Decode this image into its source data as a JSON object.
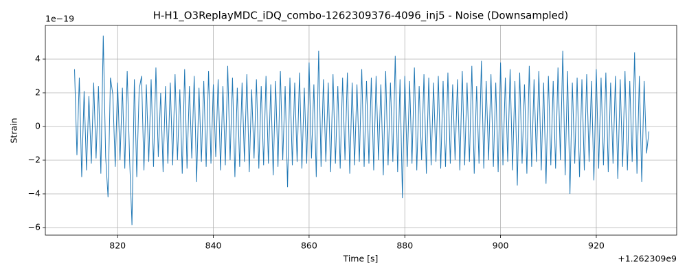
{
  "chart_data": {
    "type": "line",
    "title": "H-H1_O3ReplayMDC_iDQ_combo-1262309376-4096_inj5 - Noise (Downsampled)",
    "x_label": "Time [s]",
    "y_label": "Strain",
    "x_offset_label": "+1.262309e9",
    "y_multiplier_label": "1e−19",
    "grid": true,
    "xlim": [
      804.9,
      936.8
    ],
    "ylim": [
      -6.45,
      6.0
    ],
    "xticks": [
      820,
      840,
      860,
      880,
      900,
      920
    ],
    "yticks": [
      {
        "value": -6,
        "label": "−6"
      },
      {
        "value": -4,
        "label": "−4"
      },
      {
        "value": -2,
        "label": "−2"
      },
      0,
      2,
      4
    ],
    "x": [
      811,
      811.5,
      812,
      812.5,
      813,
      813.5,
      814,
      814.5,
      815,
      815.5,
      816,
      816.5,
      817,
      817.5,
      818,
      818.5,
      819,
      819.5,
      820,
      820.5,
      821,
      821.5,
      822,
      822.5,
      823,
      823.5,
      824,
      824.5,
      825,
      825.5,
      826,
      826.5,
      827,
      827.5,
      828,
      828.5,
      829,
      829.5,
      830,
      830.5,
      831,
      831.5,
      832,
      832.5,
      833,
      833.5,
      834,
      834.5,
      835,
      835.5,
      836,
      836.5,
      837,
      837.5,
      838,
      838.5,
      839,
      839.5,
      840,
      840.5,
      841,
      841.5,
      842,
      842.5,
      843,
      843.5,
      844,
      844.5,
      845,
      845.5,
      846,
      846.5,
      847,
      847.5,
      848,
      848.5,
      849,
      849.5,
      850,
      850.5,
      851,
      851.5,
      852,
      852.5,
      853,
      853.5,
      854,
      854.5,
      855,
      855.5,
      856,
      856.5,
      857,
      857.5,
      858,
      858.5,
      859,
      859.5,
      860,
      860.5,
      861,
      861.5,
      862,
      862.5,
      863,
      863.5,
      864,
      864.5,
      865,
      865.5,
      866,
      866.5,
      867,
      867.5,
      868,
      868.5,
      869,
      869.5,
      870,
      870.5,
      871,
      871.5,
      872,
      872.5,
      873,
      873.5,
      874,
      874.5,
      875,
      875.5,
      876,
      876.5,
      877,
      877.5,
      878,
      878.5,
      879,
      879.5,
      880,
      880.5,
      881,
      881.5,
      882,
      882.5,
      883,
      883.5,
      884,
      884.5,
      885,
      885.5,
      886,
      886.5,
      887,
      887.5,
      888,
      888.5,
      889,
      889.5,
      890,
      890.5,
      891,
      891.5,
      892,
      892.5,
      893,
      893.5,
      894,
      894.5,
      895,
      895.5,
      896,
      896.5,
      897,
      897.5,
      898,
      898.5,
      899,
      899.5,
      900,
      900.5,
      901,
      901.5,
      902,
      902.5,
      903,
      903.5,
      904,
      904.5,
      905,
      905.5,
      906,
      906.5,
      907,
      907.5,
      908,
      908.5,
      909,
      909.5,
      910,
      910.5,
      911,
      911.5,
      912,
      912.5,
      913,
      913.5,
      914,
      914.5,
      915,
      915.5,
      916,
      916.5,
      917,
      917.5,
      918,
      918.5,
      919,
      919.5,
      920,
      920.5,
      921,
      921.5,
      922,
      922.5,
      923,
      923.5,
      924,
      924.5,
      925,
      925.5,
      926,
      926.5,
      927,
      927.5,
      928,
      928.5,
      929,
      929.5,
      930,
      930.5,
      931
    ],
    "series": [
      {
        "name": "Strain",
        "color": "#1f77b4",
        "values": [
          3.4,
          -1.7,
          2.9,
          -3.0,
          2.1,
          -2.6,
          1.8,
          -2.2,
          2.6,
          -1.9,
          2.4,
          -2.8,
          5.4,
          -1.8,
          -4.2,
          2.9,
          1.9,
          -2.4,
          2.6,
          -2.0,
          2.3,
          -2.5,
          3.3,
          -1.9,
          -5.85,
          2.8,
          -3.0,
          2.2,
          3.0,
          -2.6,
          2.5,
          -2.1,
          2.8,
          -2.4,
          3.5,
          -1.8,
          2.0,
          -2.7,
          2.4,
          -2.2,
          2.6,
          -2.3,
          3.1,
          -2.0,
          2.2,
          -2.8,
          3.4,
          -2.5,
          2.4,
          -1.9,
          3.0,
          -3.3,
          2.3,
          -2.1,
          2.7,
          -2.4,
          3.3,
          -2.2,
          2.5,
          -1.8,
          2.8,
          -2.6,
          2.4,
          -2.3,
          3.6,
          -2.0,
          2.9,
          -3.0,
          2.3,
          -2.4,
          2.6,
          -2.1,
          3.1,
          -2.7,
          2.2,
          -1.9,
          2.8,
          -2.5,
          2.4,
          -2.3,
          3.0,
          -2.2,
          2.5,
          -2.9,
          2.7,
          -2.4,
          3.3,
          -2.0,
          2.4,
          -3.6,
          2.9,
          -2.3,
          2.6,
          -2.1,
          3.2,
          -2.5,
          2.3,
          -2.2,
          3.8,
          -1.9,
          2.5,
          -3.0,
          4.5,
          -2.4,
          2.8,
          -2.1,
          2.6,
          -2.7,
          3.1,
          -2.2,
          2.4,
          -2.5,
          2.9,
          -2.0,
          3.2,
          -2.8,
          2.6,
          -2.3,
          2.5,
          -2.1,
          3.4,
          -2.4,
          2.7,
          -2.2,
          2.9,
          -2.6,
          3.0,
          -2.0,
          2.5,
          -2.9,
          3.3,
          -2.3,
          2.6,
          -2.1,
          4.2,
          -2.7,
          2.8,
          -4.25,
          3.0,
          -2.4,
          2.7,
          -2.2,
          3.5,
          -2.6,
          2.4,
          -2.0,
          3.1,
          -2.8,
          2.9,
          -2.3,
          2.6,
          -2.1,
          3.0,
          -2.5,
          2.7,
          -2.4,
          3.2,
          -2.2,
          2.5,
          -2.0,
          2.8,
          -2.6,
          3.3,
          -2.3,
          2.6,
          -2.1,
          3.6,
          -2.8,
          2.4,
          -2.2,
          3.9,
          -2.5,
          2.7,
          -2.0,
          3.1,
          -2.4,
          2.6,
          -2.7,
          3.8,
          -2.3,
          2.9,
          -2.1,
          3.4,
          -2.6,
          2.7,
          -3.5,
          3.2,
          -2.2,
          2.5,
          -2.8,
          3.6,
          -2.4,
          2.8,
          -2.1,
          3.3,
          -2.6,
          2.6,
          -3.4,
          3.0,
          -2.3,
          2.7,
          -2.5,
          3.5,
          -2.0,
          4.5,
          -2.9,
          3.3,
          -4.0,
          2.6,
          -2.2,
          2.9,
          -3.0,
          2.8,
          -2.6,
          3.1,
          -2.1,
          2.7,
          -3.2,
          3.4,
          -2.5,
          2.9,
          -2.3,
          3.2,
          -2.7,
          2.6,
          -2.2,
          3.0,
          -3.1,
          2.8,
          -2.4,
          3.3,
          -2.6,
          2.7,
          -2.1,
          4.4,
          -2.8,
          3.0,
          -3.3,
          2.7,
          -1.6,
          -0.3
        ]
      }
    ]
  }
}
